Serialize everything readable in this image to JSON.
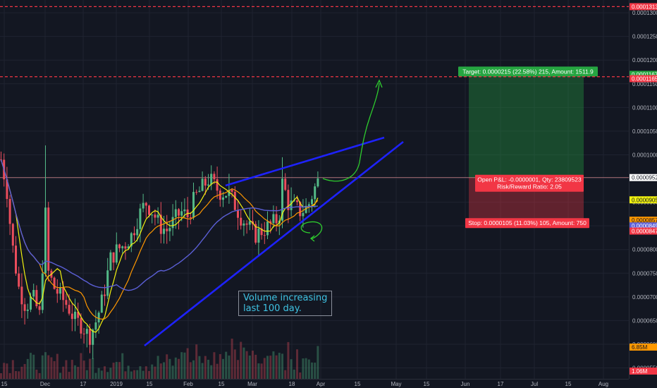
{
  "chart_data": {
    "type": "candlestick",
    "y_axis": {
      "ticks": [
        "0.0001300",
        "0.0001250",
        "0.0001200",
        "0.0001150",
        "0.0001100",
        "0.0001050",
        "0.0001000",
        "0.0000950",
        "0.0000900",
        "0.0000850",
        "0.0000800",
        "0.0000750",
        "0.0000700",
        "0.0000650",
        "0.0000600",
        "0.0000550"
      ],
      "range": [
        5.27e-05,
        0.0001327
      ]
    },
    "x_axis": {
      "ticks": [
        "15",
        "Dec",
        "17",
        "2019",
        "15",
        "Feb",
        "15",
        "Mar",
        "18",
        "Apr",
        "15",
        "May",
        "15",
        "Jun",
        "17",
        "Jul",
        "15",
        "Aug"
      ]
    },
    "price_labels": [
      {
        "name": "red-line-top",
        "text": "0.0001313",
        "color": "#f23645"
      },
      {
        "name": "target",
        "text": "0.0001167",
        "color": "#26a641"
      },
      {
        "name": "red-line-2",
        "text": "0.0001165",
        "color": "#f23645"
      },
      {
        "name": "last-price",
        "text": "0.0000952",
        "color": "#ffffff"
      },
      {
        "name": "yellow-ma",
        "text": "0.0000905",
        "color": "#f2f20f"
      },
      {
        "name": "orange-ma",
        "text": "0.0000857",
        "color": "#ff9800"
      },
      {
        "name": "purple-ma",
        "text": "0.0000849",
        "color": "#5b5fd6"
      },
      {
        "name": "stop",
        "text": "0.0000847",
        "color": "#f23645"
      },
      {
        "name": "volume-ma",
        "text": "6.85M",
        "color": "#ff9800"
      },
      {
        "name": "volume",
        "text": "1.06M",
        "color": "#f23645"
      }
    ],
    "position": {
      "target_label": "Target: 0.0000215 (22.58%) 215, Amount: 1511.9",
      "pnl_label_1": "Open P&L: -0.0000001, Qty: 23809523",
      "pnl_label_2": "Risk/Reward Ratio: 2.05",
      "stop_label": "Stop: 0.0000105 (11.03%) 105, Amount: 750",
      "entry": 9.52e-05,
      "target": 0.0001167,
      "stop": 8.47e-05
    },
    "horizontal_lines": [
      0.0001313,
      0.0001165
    ],
    "annotation": [
      "Volume increasing",
      "last 100 day."
    ],
    "colors": {
      "background": "#131722",
      "up": "#53b987",
      "down": "#eb4d5c",
      "trendline": "#1e22ff",
      "arrow": "#2ecc2e",
      "ma_yellow": "#f2f20f",
      "ma_orange": "#ff9800",
      "ma_purple": "#5b5fd6"
    }
  }
}
